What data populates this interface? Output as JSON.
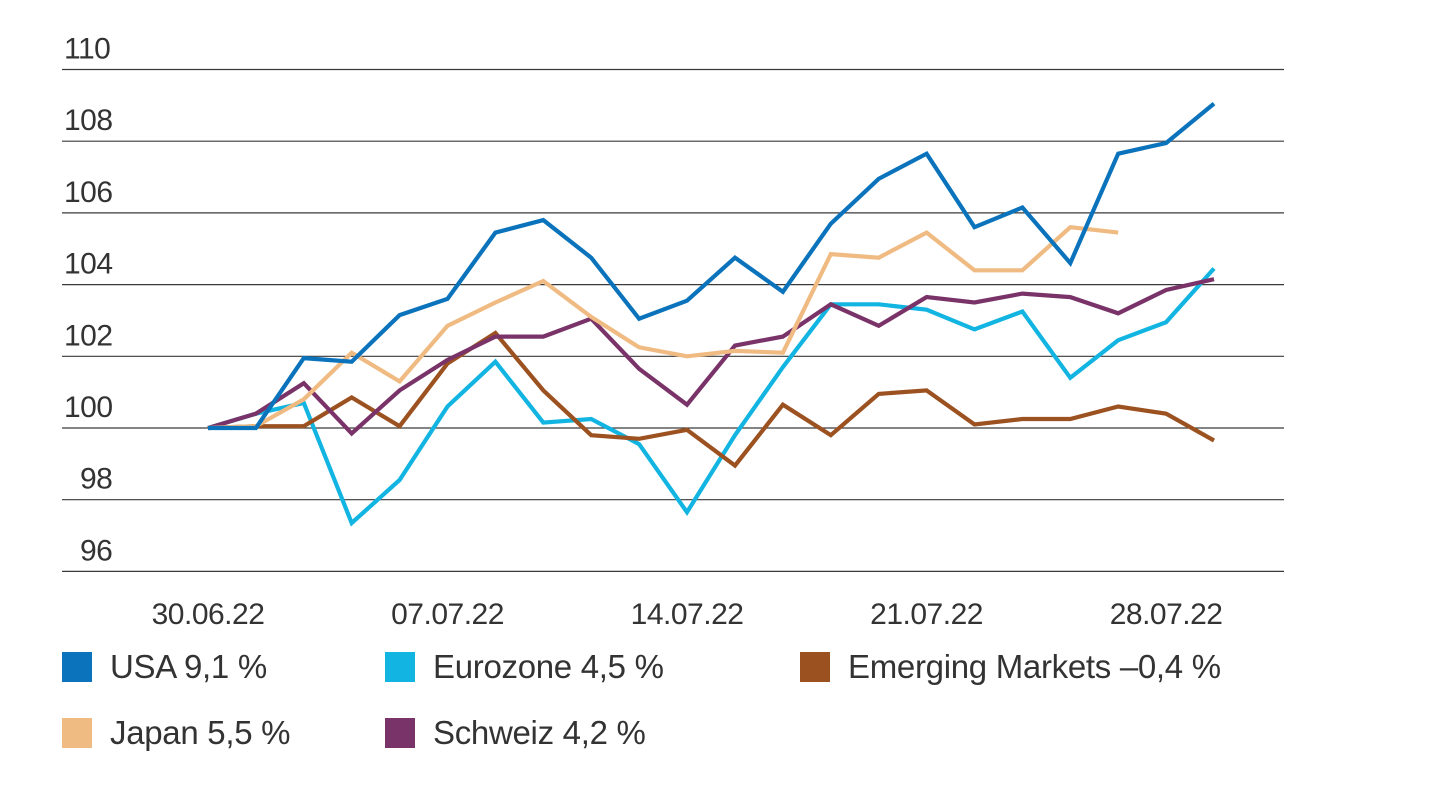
{
  "chart_data": {
    "type": "line",
    "title": "",
    "xlabel": "",
    "ylabel": "",
    "ylim": [
      95.8,
      110
    ],
    "y_ticks": [
      "96",
      "98",
      "100",
      "102",
      "104",
      "106",
      "108",
      "110"
    ],
    "x_tick_labels": [
      "30.06.22",
      "07.07.22",
      "14.07.22",
      "21.07.22",
      "28.07.22"
    ],
    "x": [
      "30.06.22",
      "01.07.22",
      "04.07.22",
      "05.07.22",
      "06.07.22",
      "07.07.22",
      "08.07.22",
      "11.07.22",
      "12.07.22",
      "13.07.22",
      "14.07.22",
      "15.07.22",
      "18.07.22",
      "19.07.22",
      "20.07.22",
      "21.07.22",
      "22.07.22",
      "25.07.22",
      "26.07.22",
      "27.07.22",
      "28.07.22",
      "29.07.22"
    ],
    "grid": true,
    "legend_position": "bottom",
    "series": [
      {
        "name": "USA 9,1 %",
        "color": "#0a73bb",
        "x": [
          "30.06.22",
          "01.07.22",
          "02.07.22",
          "05.07.22",
          "06.07.22",
          "07.07.22",
          "08.07.22",
          "09.07.22",
          "12.07.22",
          "13.07.22",
          "14.07.22",
          "15.07.22",
          "16.07.22",
          "19.07.22",
          "20.07.22",
          "21.07.22",
          "22.07.22",
          "23.07.22",
          "26.07.22",
          "27.07.22",
          "28.07.22",
          "29.07.22",
          "30.07.22"
        ],
        "values": [
          100.0,
          100.0,
          101.95,
          101.85,
          103.15,
          103.6,
          105.45,
          105.8,
          104.75,
          103.05,
          103.55,
          104.75,
          103.8,
          105.7,
          106.95,
          107.65,
          105.6,
          106.15,
          104.6,
          107.65,
          107.95,
          109.05,
          null
        ]
      },
      {
        "name": "Eurozone 4,5 %",
        "color": "#12b4e1",
        "values": [
          100.0,
          100.4,
          100.7,
          97.35,
          98.55,
          100.6,
          101.85,
          100.15,
          100.25,
          99.55,
          97.65,
          99.8,
          101.7,
          103.45,
          103.45,
          103.3,
          102.75,
          103.25,
          101.4,
          102.45,
          102.95,
          104.45
        ]
      },
      {
        "name": "Emerging Markets –0,4 %",
        "color": "#9c5120",
        "values": [
          100.0,
          100.05,
          100.05,
          100.85,
          100.05,
          101.8,
          102.65,
          101.05,
          99.8,
          99.7,
          99.95,
          98.95,
          100.65,
          99.8,
          100.95,
          101.05,
          100.1,
          100.25,
          100.25,
          100.6,
          100.4,
          99.65
        ]
      },
      {
        "name": "Japan 5,5 %",
        "color": "#f0bb82",
        "values": [
          100.0,
          100.05,
          100.8,
          102.1,
          101.3,
          102.85,
          103.5,
          104.1,
          103.1,
          102.25,
          102.0,
          102.15,
          102.1,
          104.85,
          104.75,
          105.45,
          104.4,
          104.4,
          105.6,
          105.45,
          null,
          null
        ]
      },
      {
        "name": "Schweiz 4,2 %",
        "color": "#7a3368",
        "values": [
          100.0,
          100.4,
          101.25,
          99.85,
          101.05,
          101.9,
          102.55,
          102.55,
          103.05,
          101.65,
          100.65,
          102.3,
          102.55,
          103.45,
          102.85,
          103.65,
          103.5,
          103.75,
          103.65,
          103.2,
          103.85,
          104.15
        ]
      }
    ]
  }
}
